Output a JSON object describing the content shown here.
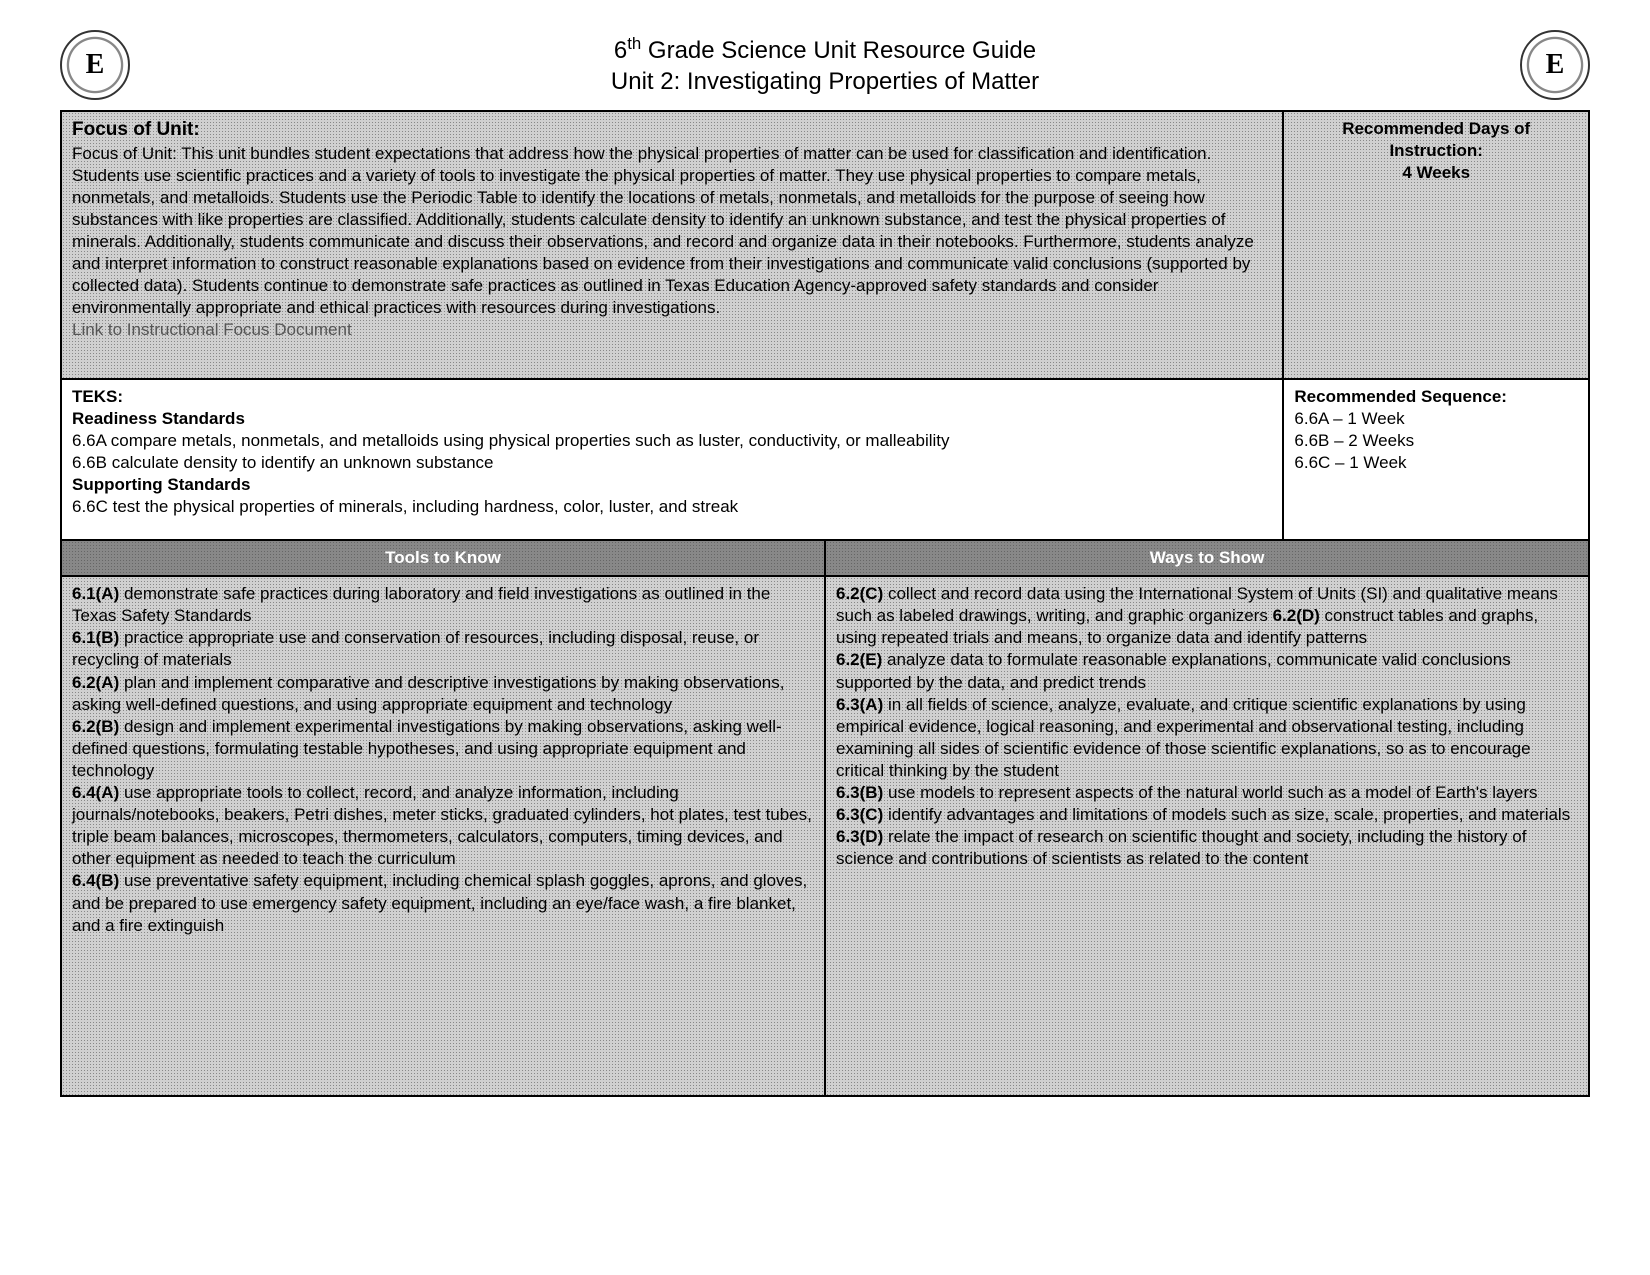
{
  "header": {
    "title_line1_prefix": "6",
    "title_line1_sup": "th",
    "title_line1_rest": " Grade Science Unit Resource Guide",
    "title_line2": "Unit 2:  Investigating Properties of Matter"
  },
  "focus": {
    "heading": "Focus of Unit:",
    "body": "Focus of Unit: This unit bundles student expectations that address how the physical properties of matter can be used for classification and identification. Students use scientific practices and a variety of tools to investigate the physical properties of matter. They use physical properties to compare metals, nonmetals, and metalloids. Students use the Periodic Table to identify the locations of metals, nonmetals, and metalloids for the purpose of seeing how substances with like properties are classified. Additionally, students calculate density to identify an unknown substance, and test the physical properties of minerals. Additionally, students communicate and discuss their observations, and record and organize data in their notebooks. Furthermore, students analyze and interpret information to construct reasonable explanations based on evidence from their investigations and communicate valid conclusions (supported by collected data). Students continue to demonstrate safe practices as outlined in Texas Education Agency-approved safety standards and consider environmentally appropriate and ethical practices with resources during investigations.",
    "link": "Link to Instructional Focus Document"
  },
  "recommended_days": {
    "label": "Recommended Days of Instruction:",
    "value": "4 Weeks"
  },
  "teks": {
    "heading": "TEKS:",
    "readiness_label": "Readiness Standards",
    "readiness_items": [
      "6.6A compare metals, nonmetals, and metalloids using physical properties such as luster, conductivity, or malleability",
      "6.6B calculate density to identify an unknown substance"
    ],
    "supporting_label": "Supporting Standards",
    "supporting_items": [
      "6.6C test the physical properties of minerals, including hardness, color, luster, and streak"
    ]
  },
  "sequence": {
    "heading": "Recommended Sequence:",
    "items": [
      "6.6A – 1 Week",
      "6.6B – 2 Weeks",
      "6.6C – 1 Week"
    ]
  },
  "tools_header": "Tools to Know",
  "ways_header": "Ways to Show",
  "tools": [
    {
      "code": "6.1(A)",
      "text": " demonstrate safe practices during laboratory and field investigations as outlined in the Texas Safety Standards"
    },
    {
      "code": "6.1(B)",
      "text": " practice appropriate use and conservation of resources, including disposal, reuse, or recycling of materials"
    },
    {
      "code": "6.2(A)",
      "text": " plan and implement comparative and descriptive investigations by making observations, asking well-defined questions, and using appropriate equipment and technology"
    },
    {
      "code": "6.2(B)",
      "text": " design and implement experimental investigations by making observations, asking well-defined questions, formulating testable hypotheses, and using appropriate equipment and technology"
    },
    {
      "code": "6.4(A)",
      "text": " use appropriate tools to collect, record, and analyze information, including journals/notebooks, beakers, Petri dishes, meter sticks, graduated cylinders, hot plates, test tubes, triple beam balances, microscopes, thermometers, calculators, computers, timing devices, and other equipment as needed to teach the curriculum"
    },
    {
      "code": "6.4(B)",
      "text": " use preventative safety equipment, including chemical splash goggles, aprons, and gloves, and be prepared to use emergency safety equipment, including an eye/face wash, a fire blanket, and a fire extinguish"
    }
  ],
  "ways": [
    {
      "code": "6.2(C)",
      "text": " collect and record data using the International System of Units (SI) and qualitative means such as labeled drawings, writing, and graphic organizers ",
      "code2": "6.2(D)",
      "text2": " construct tables and graphs, using repeated trials and means, to organize data and identify patterns"
    },
    {
      "code": " 6.2(E)",
      "text": " analyze data to formulate reasonable explanations, communicate valid conclusions supported by the data, and predict trends"
    },
    {
      "code": "6.3(A)",
      "text": " in all fields of science, analyze, evaluate, and critique scientific explanations by using empirical evidence, logical reasoning, and experimental and observational testing, including examining all sides of scientific evidence of those scientific explanations, so as to encourage critical thinking by the student"
    },
    {
      "code": "6.3(B)",
      "text": " use models to represent aspects of the natural world such as a model of Earth's layers"
    },
    {
      "code": "6.3(C)",
      "text": " identify advantages and limitations of models such as size, scale, properties, and materials"
    },
    {
      "code": "6.3(D)",
      "text": " relate the impact of research on scientific thought and society, including the history of science and contributions of scientists as related to the content"
    }
  ]
}
